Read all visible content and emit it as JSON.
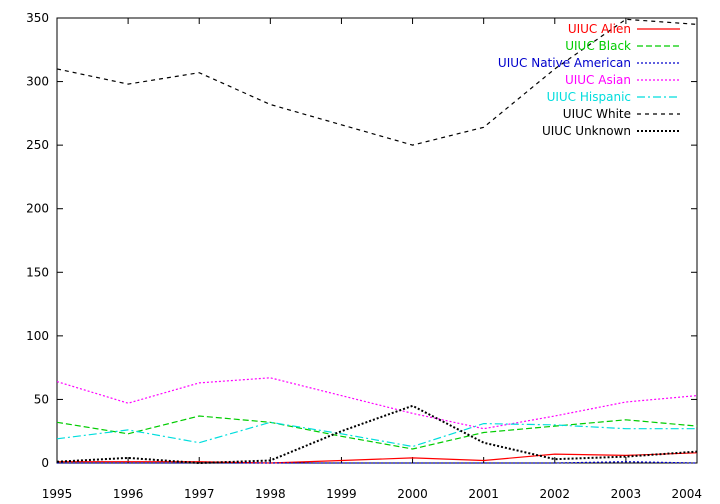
{
  "chart_data": {
    "type": "line",
    "x": [
      1995,
      1996,
      1997,
      1998,
      1999,
      2000,
      2001,
      2002,
      2003,
      2004
    ],
    "xticks": [
      "1995",
      "1996",
      "1997",
      "1998",
      "1999",
      "2000",
      "2001",
      "2002",
      "2003",
      "2004"
    ],
    "yticks": [
      "0",
      "50",
      "100",
      "150",
      "200",
      "250",
      "300",
      "350"
    ],
    "xlim": [
      1995,
      2004
    ],
    "ylim": [
      0,
      350
    ],
    "grid": false,
    "legend_position": "top-right",
    "series": [
      {
        "name": "UIUC Alien",
        "color": "#ff0000",
        "dash": "solid",
        "values": [
          1,
          1,
          1,
          0,
          2,
          4,
          2,
          7,
          6,
          8
        ]
      },
      {
        "name": "UIUC Black",
        "color": "#00cc00",
        "dash": "dashed",
        "values": [
          32,
          23,
          37,
          32,
          21,
          11,
          24,
          29,
          34,
          29
        ]
      },
      {
        "name": "UIUC Native American",
        "color": "#0000cc",
        "dash": "dotted",
        "values": [
          0,
          0,
          0,
          0,
          0,
          0,
          0,
          0,
          1,
          0
        ]
      },
      {
        "name": "UIUC Asian",
        "color": "#ff00ff",
        "dash": "dotted",
        "values": [
          64,
          47,
          63,
          67,
          53,
          39,
          27,
          37,
          48,
          53
        ]
      },
      {
        "name": "UIUC Hispanic",
        "color": "#00dddd",
        "dash": "dashdot",
        "values": [
          19,
          26,
          16,
          32,
          23,
          13,
          31,
          30,
          27,
          27
        ]
      },
      {
        "name": "UIUC White",
        "color": "#000000",
        "dash": "dashed-fine",
        "values": [
          310,
          298,
          307,
          282,
          266,
          250,
          264,
          310,
          349,
          345
        ]
      },
      {
        "name": "UIUC Unknown",
        "color": "#000000",
        "dash": "dotted-bold",
        "values": [
          1,
          4,
          0,
          2,
          25,
          45,
          16,
          3,
          5,
          9
        ]
      }
    ]
  }
}
